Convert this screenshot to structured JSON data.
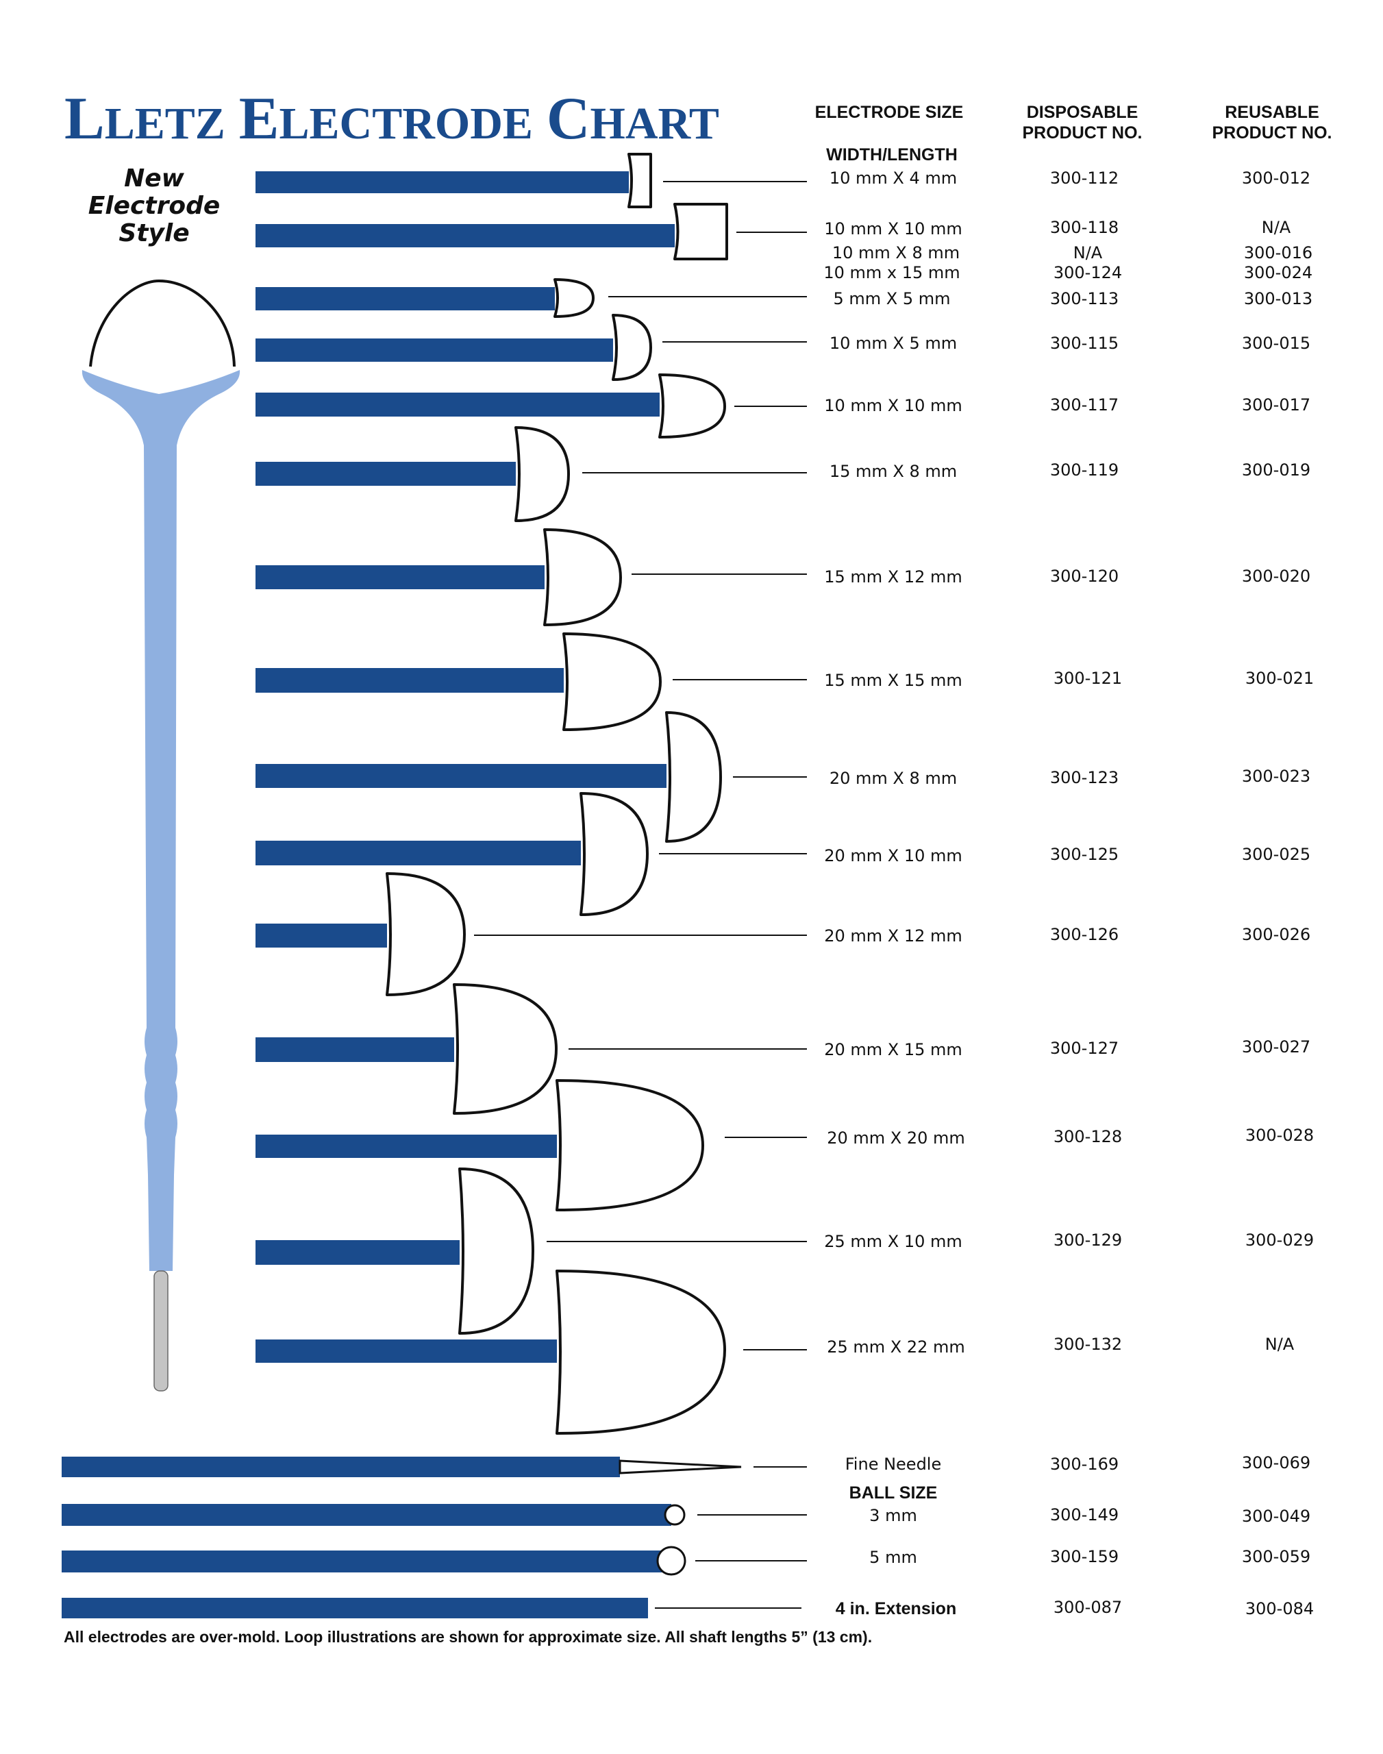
{
  "title": {
    "big1": "L",
    "small1": "LETZ",
    "big2": "E",
    "small2": "LECTRODE",
    "big3": "C",
    "small3": "HART"
  },
  "side_label": {
    "line1": "New",
    "line2": "Electrode",
    "line3": "Style"
  },
  "headers": {
    "size_line1": "ELECTRODE SIZE",
    "size_line2": "WIDTH/LENGTH",
    "disp_line1": "DISPOSABLE",
    "disp_line2": "PRODUCT NO.",
    "reus_line1": "REUSABLE",
    "reus_line2": "PRODUCT NO."
  },
  "rows": [
    {
      "size": "10 mm X 4 mm",
      "disposable": "300-112",
      "reusable": "300-012"
    },
    {
      "size": "10 mm X 10 mm",
      "disposable": "300-118",
      "reusable": "N/A"
    },
    {
      "size": "10 mm X 8 mm",
      "disposable": "N/A",
      "reusable": "300-016"
    },
    {
      "size": "10 mm x 15 mm",
      "disposable": "300-124",
      "reusable": "300-024"
    },
    {
      "size": "5 mm X 5 mm",
      "disposable": "300-113",
      "reusable": "300-013"
    },
    {
      "size": "10 mm X 5 mm",
      "disposable": "300-115",
      "reusable": "300-015"
    },
    {
      "size": "10 mm X 10 mm",
      "disposable": "300-117",
      "reusable": "300-017"
    },
    {
      "size": "15 mm X 8 mm",
      "disposable": "300-119",
      "reusable": "300-019"
    },
    {
      "size": "15 mm X 12 mm",
      "disposable": "300-120",
      "reusable": "300-020"
    },
    {
      "size": "15 mm X 15 mm",
      "disposable": "300-121",
      "reusable": "300-021"
    },
    {
      "size": "20 mm X 8 mm",
      "disposable": "300-123",
      "reusable": "300-023"
    },
    {
      "size": "20 mm X 10 mm",
      "disposable": "300-125",
      "reusable": "300-025"
    },
    {
      "size": "20 mm X 12 mm",
      "disposable": "300-126",
      "reusable": "300-026"
    },
    {
      "size": "20 mm X 15 mm",
      "disposable": "300-127",
      "reusable": "300-027"
    },
    {
      "size": "20 mm X 20 mm",
      "disposable": "300-128",
      "reusable": "300-028"
    },
    {
      "size": "25 mm X 10 mm",
      "disposable": "300-129",
      "reusable": "300-029"
    },
    {
      "size": "25 mm X 22 mm",
      "disposable": "300-132",
      "reusable": "N/A"
    },
    {
      "size": "Fine Needle",
      "disposable": "300-169",
      "reusable": "300-069"
    },
    {
      "size": "3 mm",
      "disposable": "300-149",
      "reusable": "300-049"
    },
    {
      "size": "5 mm",
      "disposable": "300-159",
      "reusable": "300-059"
    },
    {
      "size": "4 in. Extension",
      "disposable": "300-087",
      "reusable": "300-084"
    }
  ],
  "ball_size_label": "BALL SIZE",
  "footnote": "All electrodes are over-mold. Loop illustrations are shown for approximate size. All shaft lengths 5” (13 cm).",
  "colors": {
    "shaft_blue": "#1a4b8c",
    "handle_blue": "#8fb0e0",
    "title_blue": "#1a4b8c"
  }
}
